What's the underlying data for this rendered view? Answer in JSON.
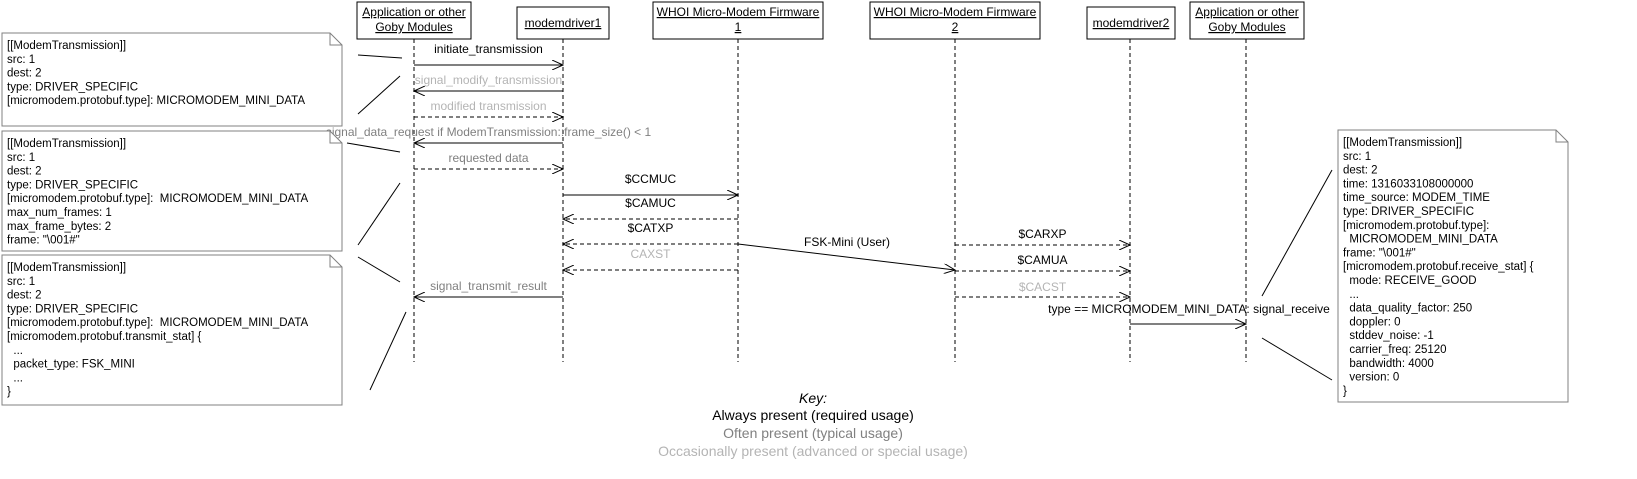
{
  "participants": [
    {
      "id": "app1",
      "lines": [
        "Application or other",
        "Goby Modules"
      ]
    },
    {
      "id": "driver1",
      "lines": [
        "modemdriver1"
      ]
    },
    {
      "id": "fw1",
      "lines": [
        "WHOI Micro-Modem Firmware",
        "1"
      ]
    },
    {
      "id": "fw2",
      "lines": [
        "WHOI Micro-Modem Firmware",
        "2"
      ]
    },
    {
      "id": "driver2",
      "lines": [
        "modemdriver2"
      ]
    },
    {
      "id": "app2",
      "lines": [
        "Application or other",
        "Goby Modules"
      ]
    }
  ],
  "messages": [
    {
      "from": "app1",
      "to": "driver1",
      "label": "initiate_transmission",
      "usage": "required",
      "style": "solid"
    },
    {
      "from": "driver1",
      "to": "app1",
      "label": "signal_modify_transmission",
      "usage": "occasional",
      "style": "solid"
    },
    {
      "from": "app1",
      "to": "driver1",
      "label": "modified transmission",
      "usage": "occasional",
      "style": "dashed"
    },
    {
      "from": "driver1",
      "to": "app1",
      "label": "signal_data_request if ModemTransmission::frame_size() < 1",
      "usage": "typical",
      "style": "solid"
    },
    {
      "from": "app1",
      "to": "driver1",
      "label": "requested data",
      "usage": "typical",
      "style": "dashed"
    },
    {
      "from": "driver1",
      "to": "fw1",
      "label": "$CCMUC",
      "usage": "required",
      "style": "solid"
    },
    {
      "from": "fw1",
      "to": "driver1",
      "label": "$CAMUC",
      "usage": "required",
      "style": "dashed"
    },
    {
      "from": "fw1",
      "to": "driver1",
      "label": "$CATXP",
      "usage": "required",
      "style": "dashed"
    },
    {
      "from": "fw1",
      "to": "fw2",
      "label": "FSK-Mini (User)",
      "usage": "required",
      "style": "solid"
    },
    {
      "from": "fw1",
      "to": "driver1",
      "label": "CAXST",
      "usage": "occasional",
      "style": "dashed"
    },
    {
      "from": "fw2",
      "to": "driver2",
      "label": "$CARXP",
      "usage": "required",
      "style": "dashed"
    },
    {
      "from": "fw2",
      "to": "driver2",
      "label": "$CAMUA",
      "usage": "required",
      "style": "dashed"
    },
    {
      "from": "fw2",
      "to": "driver2",
      "label": "$CACST",
      "usage": "occasional",
      "style": "dashed"
    },
    {
      "from": "driver1",
      "to": "app1",
      "label": "signal_transmit_result",
      "usage": "typical",
      "style": "solid"
    },
    {
      "from": "driver2",
      "to": "app2",
      "label": "type == MICROMODEM_MINI_DATA: signal_receive",
      "usage": "required",
      "style": "solid"
    }
  ],
  "notes": [
    {
      "id": "note-initiate",
      "lines": [
        "[[ModemTransmission]]",
        "src: 1",
        "dest: 2",
        "type: DRIVER_SPECIFIC",
        "[micromodem.protobuf.type]: MICROMODEM_MINI_DATA"
      ]
    },
    {
      "id": "note-data-request",
      "lines": [
        "[[ModemTransmission]]",
        "src: 1",
        "dest: 2",
        "type: DRIVER_SPECIFIC",
        "[micromodem.protobuf.type]:  MICROMODEM_MINI_DATA",
        "max_num_frames: 1",
        "max_frame_bytes: 2",
        "frame: \"\\001#\""
      ]
    },
    {
      "id": "note-transmit-result",
      "lines": [
        "[[ModemTransmission]]",
        "src: 1",
        "dest: 2",
        "type: DRIVER_SPECIFIC",
        "[micromodem.protobuf.type]:  MICROMODEM_MINI_DATA",
        "[micromodem.protobuf.transmit_stat] {",
        "  ...",
        "  packet_type: FSK_MINI",
        "  ...",
        "}"
      ]
    },
    {
      "id": "note-receive",
      "lines": [
        "[[ModemTransmission]]",
        "src: 1",
        "dest: 2",
        "time: 1316033108000000",
        "time_source: MODEM_TIME",
        "type: DRIVER_SPECIFIC",
        "[micromodem.protobuf.type]:",
        "  MICROMODEM_MINI_DATA",
        "frame: \"\\001#\"",
        "[micromodem.protobuf.receive_stat] {",
        "  mode: RECEIVE_GOOD",
        "  ...",
        "  data_quality_factor: 250",
        "  doppler: 0",
        "  stddev_noise: -1",
        "  carrier_freq: 25120",
        "  bandwidth: 4000",
        "  version: 0",
        "}"
      ]
    }
  ],
  "key": {
    "title": "Key:",
    "items": [
      {
        "usage": "required",
        "text": "Always present (required usage)"
      },
      {
        "usage": "typical",
        "text": "Often present (typical usage)"
      },
      {
        "usage": "occasional",
        "text": "Occasionally present (advanced or special usage)"
      }
    ]
  },
  "colors": {
    "required": "#000000",
    "typical": "#808080",
    "occasional": "#b4b4b4",
    "line": "#000000",
    "note_border": "#808080"
  }
}
